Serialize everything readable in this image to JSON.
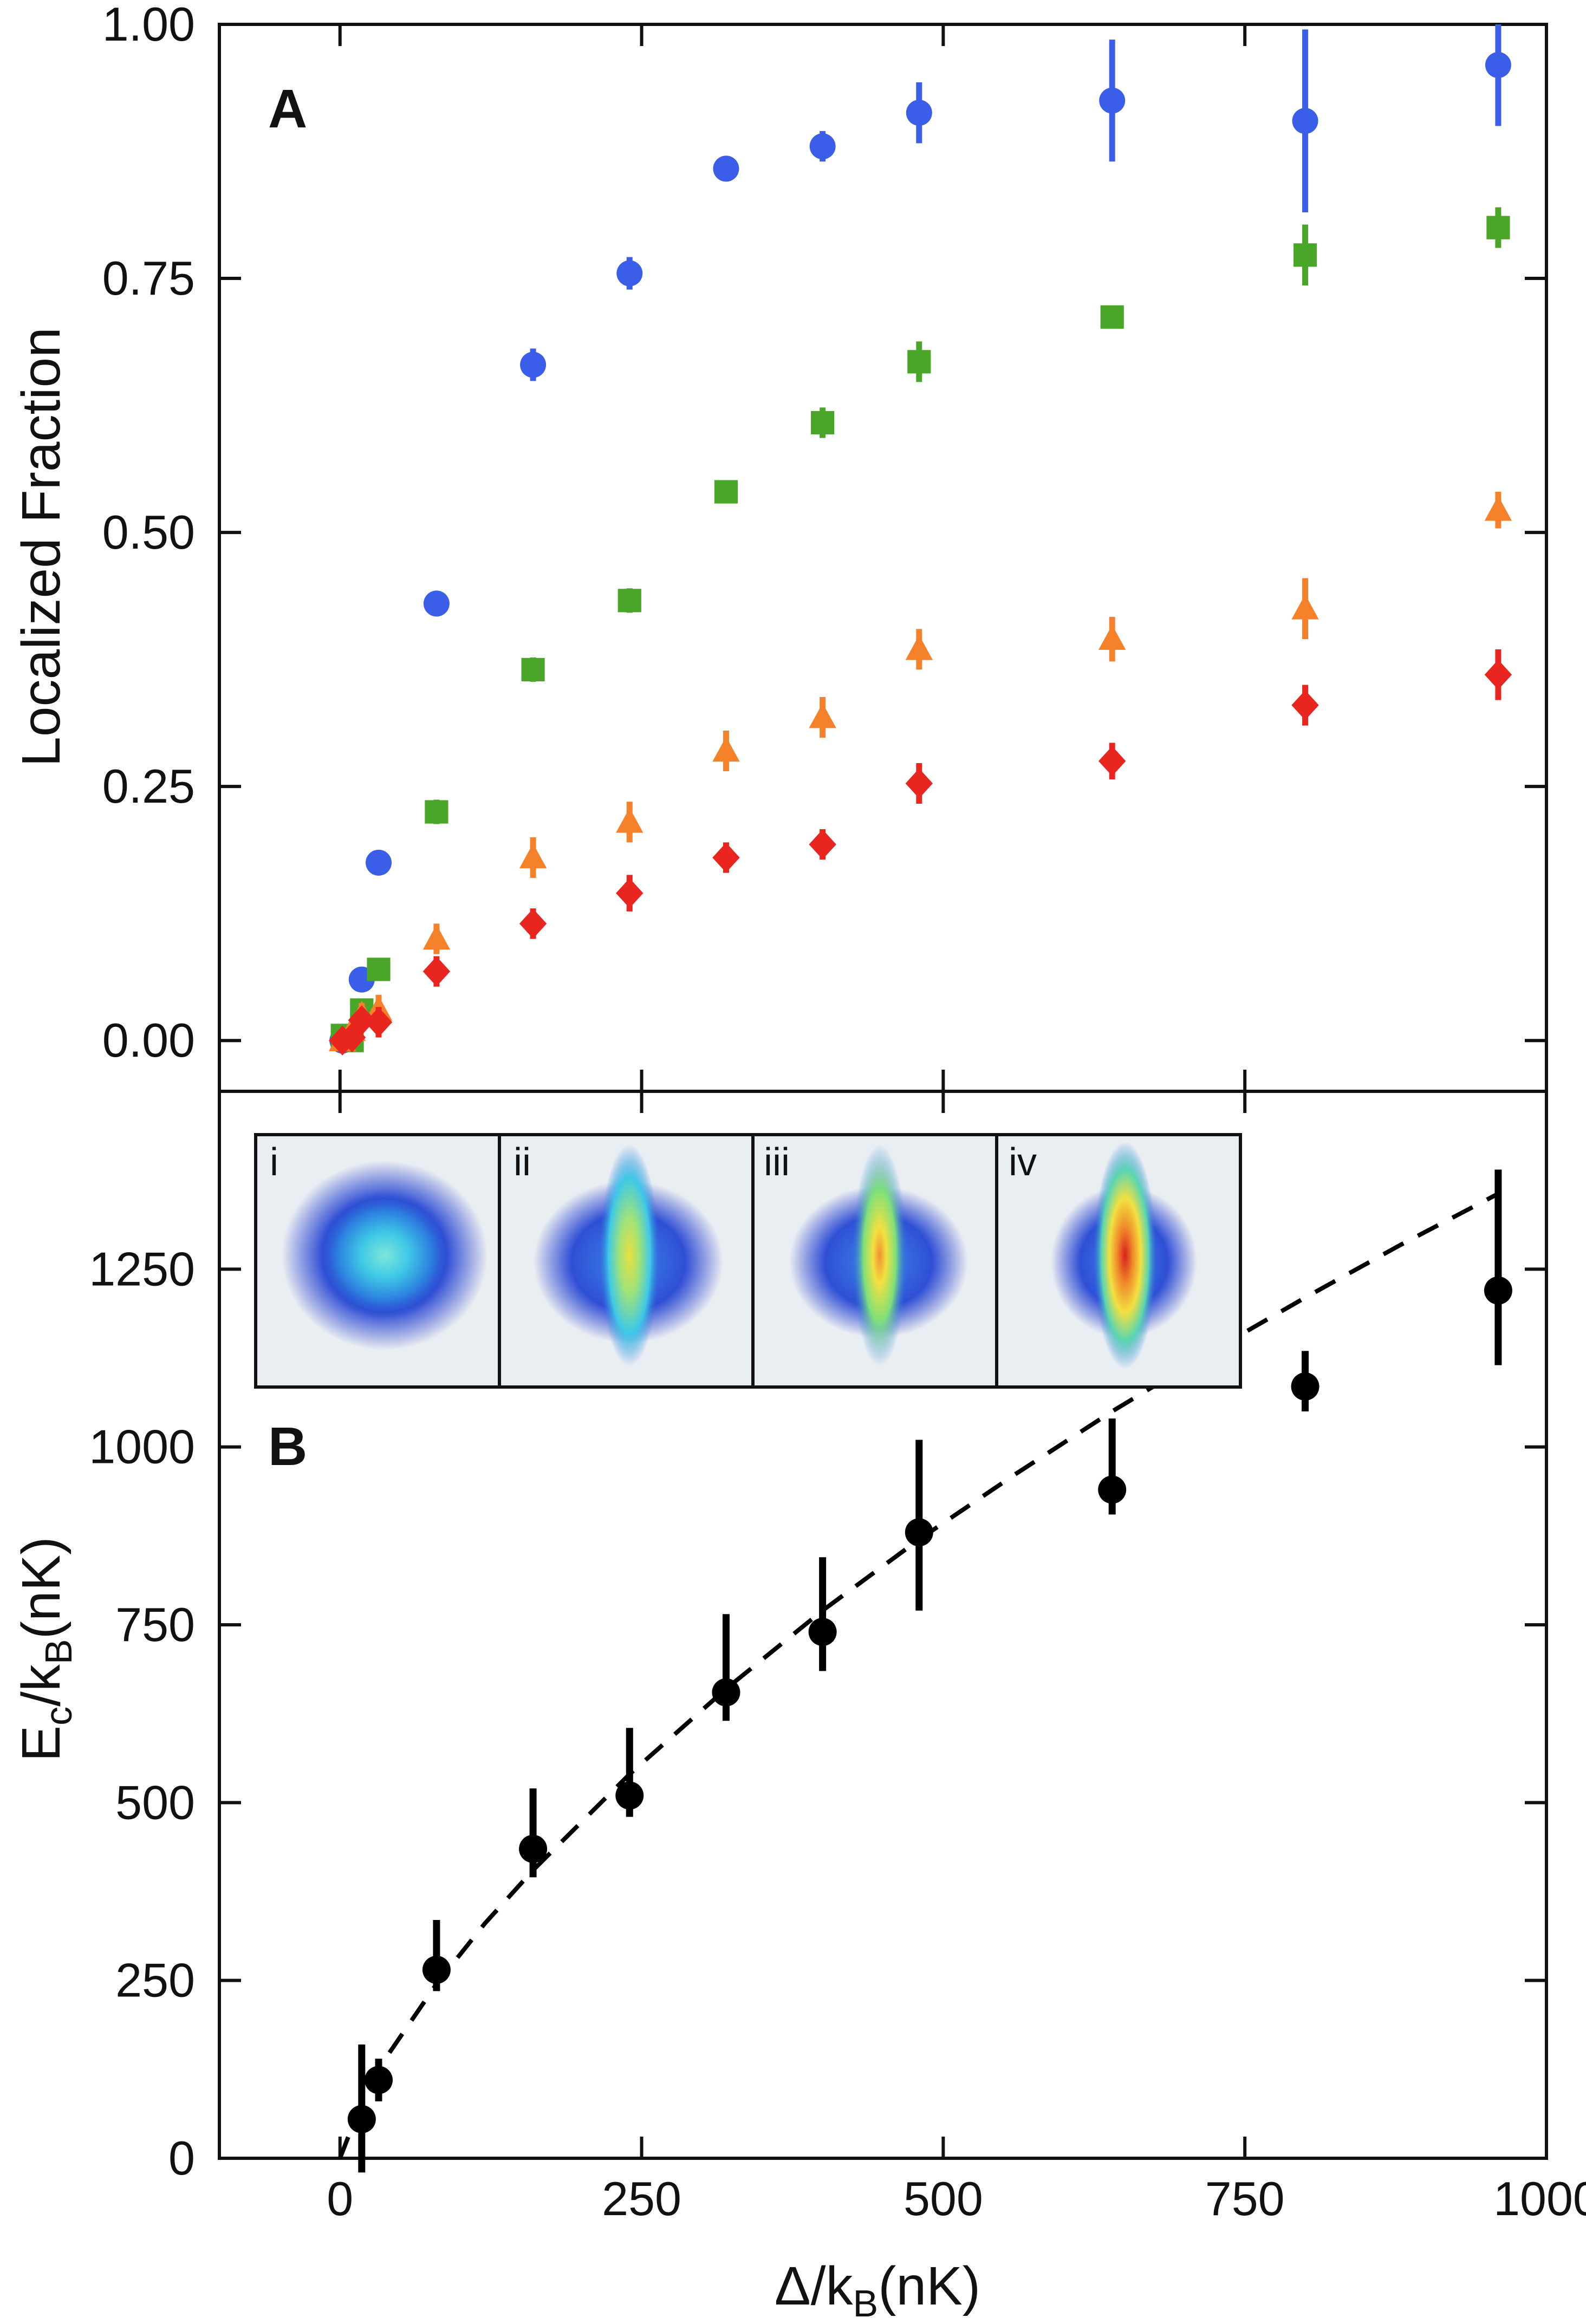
{
  "chart_data": [
    {
      "panel": "A",
      "type": "scatter",
      "ylabel": "Localized Fraction",
      "xlabel": "",
      "xlim": [
        -100,
        1000
      ],
      "ylim": [
        -0.05,
        1.0
      ],
      "yticks": [
        "0.00",
        "0.25",
        "0.50",
        "0.75",
        "1.00"
      ],
      "ytick_values": [
        0,
        0.25,
        0.5,
        0.75,
        1.0
      ],
      "series": [
        {
          "name": "blue",
          "marker": "circle",
          "color": "#3b5ee8",
          "x": [
            2,
            18,
            32,
            80,
            160,
            240,
            320,
            400,
            480,
            640,
            800,
            960
          ],
          "y": [
            0.0,
            0.06,
            0.175,
            0.43,
            0.665,
            0.755,
            0.858,
            0.88,
            0.913,
            0.925,
            0.905,
            0.96
          ],
          "yerr": [
            0.01,
            0.01,
            0.012,
            0.012,
            0.016,
            0.016,
            0.012,
            0.015,
            0.03,
            0.06,
            0.09,
            0.06
          ]
        },
        {
          "name": "green",
          "marker": "square",
          "color": "#4aa628",
          "x": [
            2,
            10,
            18,
            32,
            80,
            160,
            240,
            320,
            400,
            480,
            640,
            800,
            960
          ],
          "y": [
            0.005,
            0.0,
            0.03,
            0.07,
            0.225,
            0.365,
            0.433,
            0.54,
            0.608,
            0.668,
            0.712,
            0.773,
            0.8
          ],
          "yerr": [
            0.008,
            0.008,
            0.01,
            0.01,
            0.012,
            0.012,
            0.012,
            0.01,
            0.015,
            0.02,
            0.01,
            0.03,
            0.02
          ]
        },
        {
          "name": "orange",
          "marker": "triangle",
          "color": "#f5822a",
          "x": [
            2,
            10,
            18,
            32,
            80,
            160,
            240,
            320,
            400,
            480,
            640,
            800,
            960
          ],
          "y": [
            0.0,
            0.01,
            0.025,
            0.03,
            0.1,
            0.18,
            0.215,
            0.285,
            0.318,
            0.385,
            0.395,
            0.425,
            0.522
          ],
          "yerr": [
            0.008,
            0.01,
            0.012,
            0.015,
            0.015,
            0.02,
            0.02,
            0.02,
            0.02,
            0.02,
            0.022,
            0.03,
            0.018
          ]
        },
        {
          "name": "red",
          "marker": "diamond",
          "color": "#e8261f",
          "x": [
            2,
            10,
            18,
            32,
            80,
            160,
            240,
            320,
            400,
            480,
            640,
            800,
            960
          ],
          "y": [
            0.0,
            0.003,
            0.02,
            0.018,
            0.068,
            0.115,
            0.145,
            0.18,
            0.193,
            0.253,
            0.275,
            0.33,
            0.36
          ],
          "yerr": [
            0.008,
            0.008,
            0.01,
            0.015,
            0.015,
            0.015,
            0.018,
            0.015,
            0.015,
            0.02,
            0.018,
            0.02,
            0.025
          ]
        }
      ]
    },
    {
      "panel": "B",
      "type": "scatter",
      "xlabel": "Δ/kB(nK)",
      "ylabel": "Ec/kB(nK)",
      "xlim": [
        -100,
        1000
      ],
      "ylim": [
        0,
        1500
      ],
      "xticks": [
        "0",
        "250",
        "500",
        "750",
        "1000"
      ],
      "xtick_values": [
        0,
        250,
        500,
        750,
        1000
      ],
      "yticks": [
        "0",
        "250",
        "500",
        "750",
        "1000",
        "1250"
      ],
      "ytick_values": [
        0,
        250,
        500,
        750,
        1000,
        1250
      ],
      "series": [
        {
          "name": "data",
          "marker": "circle",
          "color": "#000000",
          "x": [
            18,
            32,
            80,
            160,
            240,
            320,
            400,
            480,
            640,
            800,
            960
          ],
          "y": [
            55,
            110,
            265,
            435,
            510,
            655,
            740,
            880,
            940,
            1085,
            1220
          ],
          "yerr_low": [
            75,
            30,
            30,
            40,
            30,
            40,
            55,
            110,
            35,
            35,
            105
          ],
          "yerr_high": [
            105,
            30,
            70,
            85,
            95,
            110,
            105,
            130,
            100,
            50,
            170
          ]
        },
        {
          "name": "fit",
          "type": "line",
          "style": "dashed",
          "color": "#000000",
          "x": [
            0,
            20,
            40,
            80,
            120,
            160,
            240,
            320,
            400,
            480,
            560,
            640,
            720,
            800,
            880,
            960
          ],
          "y": [
            0,
            88,
            146,
            245,
            330,
            405,
            540,
            660,
            770,
            870,
            962,
            1050,
            1132,
            1210,
            1285,
            1356
          ]
        }
      ],
      "insets": [
        {
          "label": "i",
          "shape": "round"
        },
        {
          "label": "ii",
          "shape": "elongated"
        },
        {
          "label": "iii",
          "shape": "elongated"
        },
        {
          "label": "iv",
          "shape": "elongated"
        }
      ]
    }
  ],
  "labels": {
    "panel_a": "A",
    "panel_b": "B",
    "y_a": "Localized Fraction",
    "y_b_main": "E",
    "y_b_sub1": "c",
    "y_b_mid": "/k",
    "y_b_sub2": "B",
    "y_b_end": "(nK)",
    "x_main": "Δ/k",
    "x_sub": "B",
    "x_end": "(nK)"
  }
}
